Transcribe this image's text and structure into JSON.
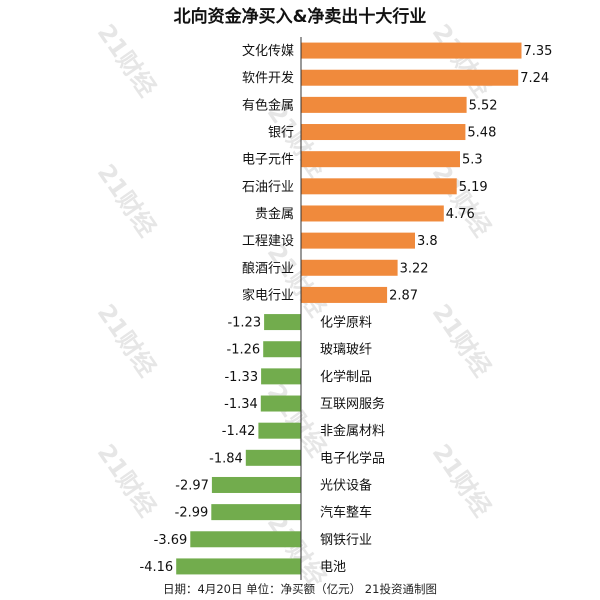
{
  "title": "北向资金净买入&净卖出十大行业",
  "footer": "日期：4月20日 单位：净买额（亿元） 21投资通制图",
  "watermark_text": "21财经",
  "colors": {
    "positive": "#f08a3c",
    "negative": "#72ac4d",
    "axis": "#333333"
  },
  "chart_data": {
    "type": "bar",
    "orientation": "horizontal",
    "title": "北向资金净买入&净卖出十大行业",
    "unit": "净买额（亿元）",
    "categories": [
      "文化传媒",
      "软件开发",
      "有色金属",
      "银行",
      "电子元件",
      "石油行业",
      "贵金属",
      "工程建设",
      "酿酒行业",
      "家电行业",
      "化学原料",
      "玻璃玻纤",
      "化学制品",
      "互联网服务",
      "非金属材料",
      "电子化学品",
      "光伏设备",
      "汽车整车",
      "钢铁行业",
      "电池"
    ],
    "values": [
      7.35,
      7.24,
      5.52,
      5.48,
      5.3,
      5.19,
      4.76,
      3.8,
      3.22,
      2.87,
      -1.23,
      -1.26,
      -1.33,
      -1.34,
      -1.42,
      -1.84,
      -2.97,
      -2.99,
      -3.69,
      -4.16
    ],
    "value_labels": [
      "7.35",
      "7.24",
      "5.52",
      "5.48",
      "5.3",
      "5.19",
      "4.76",
      "3.8",
      "3.22",
      "2.87",
      "-1.23",
      "-1.26",
      "-1.33",
      "-1.34",
      "-1.42",
      "-1.84",
      "-2.97",
      "-2.99",
      "-3.69",
      "-4.16"
    ],
    "grid": false,
    "legend": "none"
  }
}
